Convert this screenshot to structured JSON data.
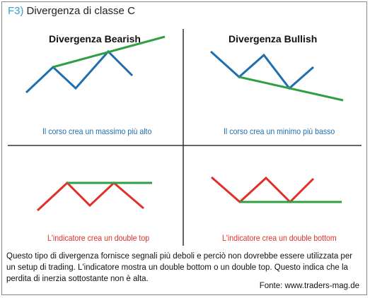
{
  "header": {
    "number": "F3)",
    "title": "Divergenza di classe C"
  },
  "panels": {
    "top_left": {
      "title": "Divergenza Bearish",
      "caption": "Il corso crea un massimo più alto"
    },
    "top_right": {
      "title": "Divergenza Bullish",
      "caption": "Il corso crea un minimo più basso"
    },
    "bottom_left": {
      "caption": "L'indicatore crea un double top"
    },
    "bottom_right": {
      "caption": "L'indicatore crea un double bottom"
    }
  },
  "description": "Questo tipo di divergenza fornisce segnali più deboli e perciò non dovrebbe essere utilizzata per un setup di trading. L'indicatore mostra un double bottom o un double top. Questo indica che la perdita di inerzia sottostante non è alta.",
  "source": "Fonte: www.traders-mag.de",
  "colors": {
    "price": "#1f6fb0",
    "trend": "#2ea043",
    "indicator": "#e0302a",
    "divider": "#333333",
    "accent": "#3aa0c8"
  }
}
